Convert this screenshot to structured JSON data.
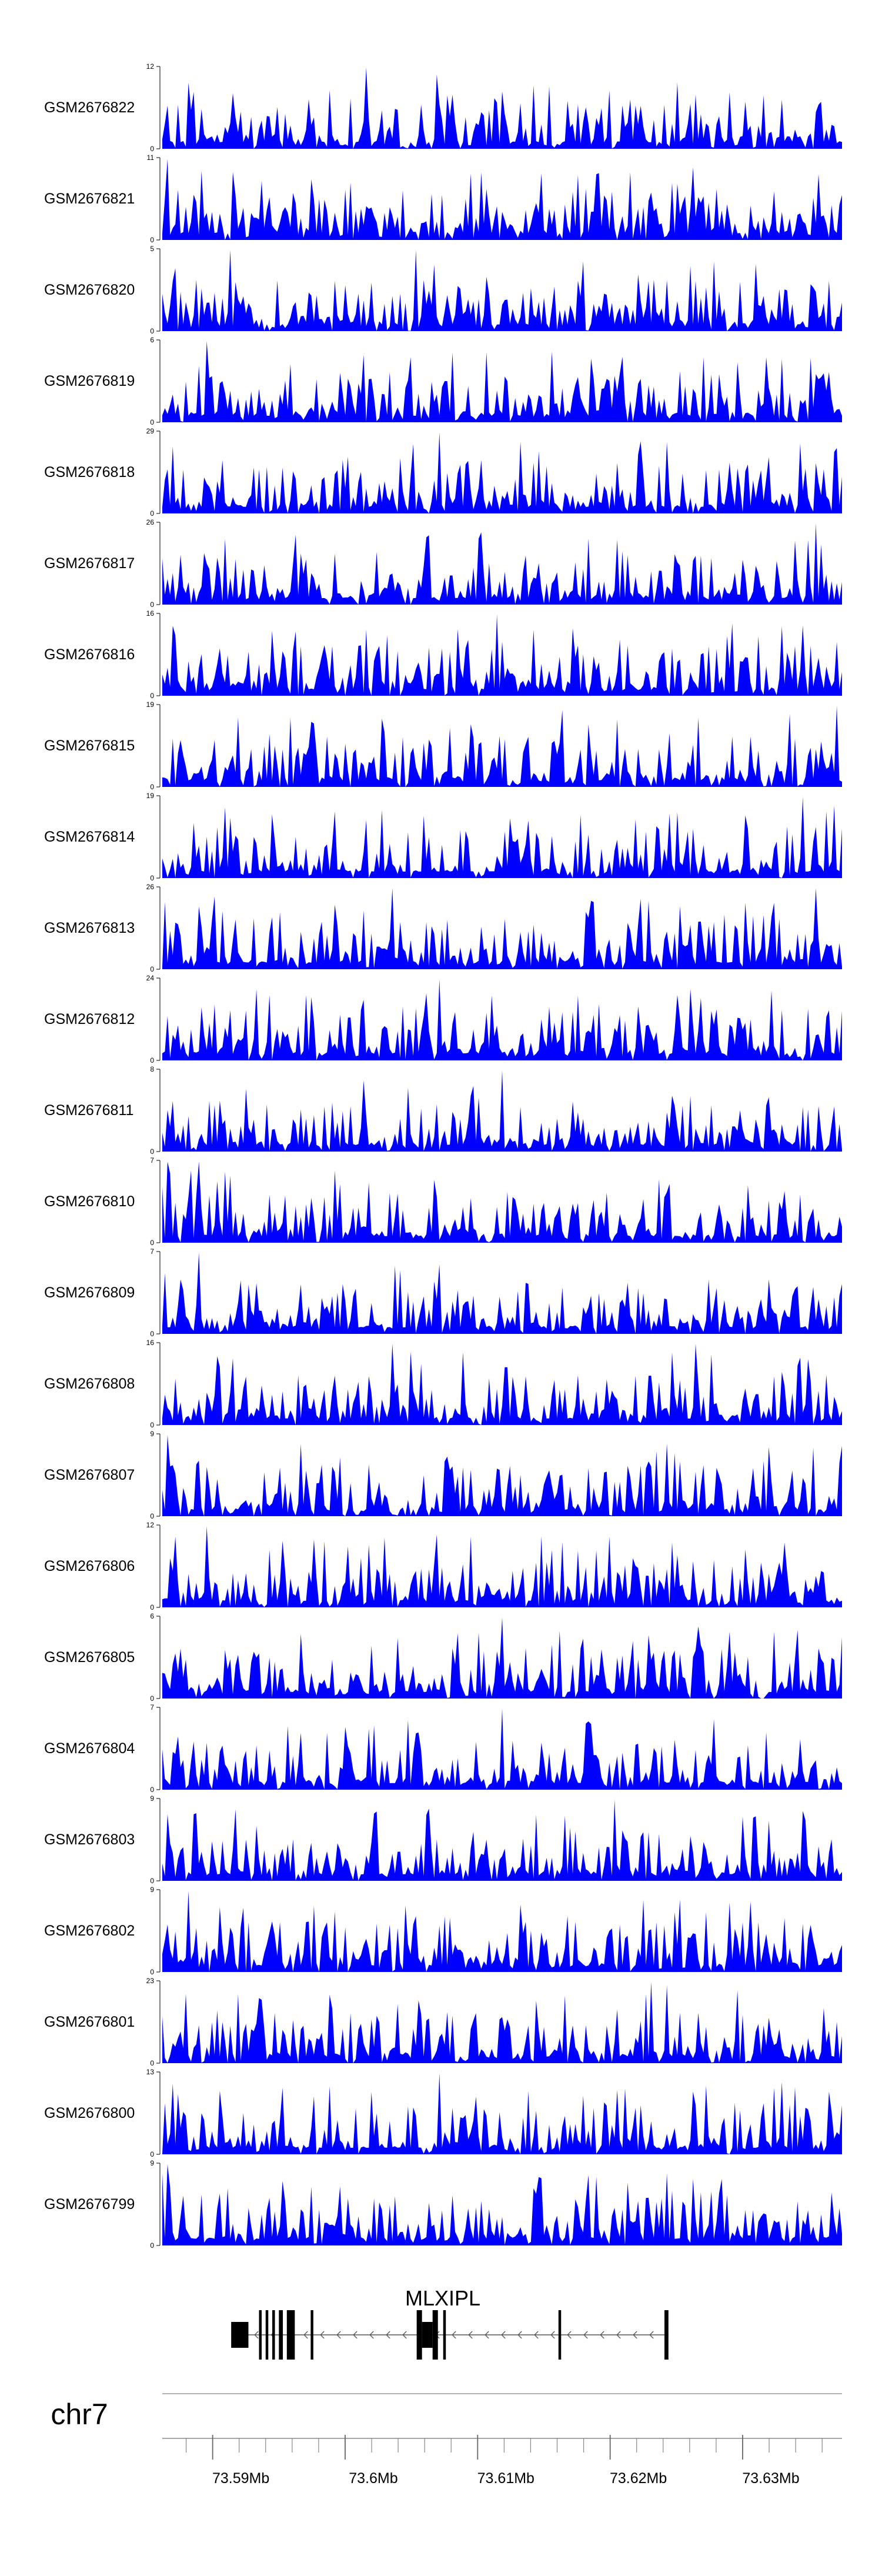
{
  "chart_data": {
    "type": "area",
    "title": "",
    "xlim": [
      73.5862,
      73.6375
    ],
    "x_unit": "Mb",
    "colors": {
      "signal": "#0000ff",
      "axis": "#000000",
      "gene": "#000000"
    },
    "tracks": [
      {
        "name": "GSM2676822",
        "ymax": "12",
        "peaks": [
          [
            73.6015,
            12
          ],
          [
            73.6069,
            11
          ]
        ]
      },
      {
        "name": "GSM2676821",
        "ymax": "11",
        "peaks": [
          [
            73.5865,
            11
          ],
          [
            73.6095,
            9
          ]
        ]
      },
      {
        "name": "GSM2676820",
        "ymax": "5",
        "peaks": [
          [
            73.5913,
            5
          ],
          [
            73.6053,
            5
          ]
        ]
      },
      {
        "name": "GSM2676819",
        "ymax": "6",
        "peaks": [
          [
            73.5895,
            6
          ],
          [
            73.6013,
            5
          ]
        ]
      },
      {
        "name": "GSM2676818",
        "ymax": "29",
        "peaks": [
          [
            73.6072,
            29
          ],
          [
            73.6222,
            21
          ]
        ]
      },
      {
        "name": "GSM2676817",
        "ymax": "26",
        "peaks": [
          [
            73.6355,
            26
          ],
          [
            73.6325,
            14
          ]
        ]
      },
      {
        "name": "GSM2676816",
        "ymax": "16",
        "peaks": [
          [
            73.6115,
            16
          ],
          [
            73.6142,
            13
          ]
        ]
      },
      {
        "name": "GSM2676815",
        "ymax": "19",
        "peaks": [
          [
            73.6371,
            19
          ],
          [
            73.6163,
            18
          ]
        ]
      },
      {
        "name": "GSM2676814",
        "ymax": "19",
        "peaks": [
          [
            73.6345,
            19
          ],
          [
            73.6125,
            14
          ]
        ]
      },
      {
        "name": "GSM2676813",
        "ymax": "26",
        "peaks": [
          [
            73.6355,
            26
          ],
          [
            73.6036,
            26
          ]
        ]
      },
      {
        "name": "GSM2676812",
        "ymax": "24",
        "peaks": [
          [
            73.6072,
            24
          ],
          [
            73.6222,
            16
          ]
        ]
      },
      {
        "name": "GSM2676811",
        "ymax": "8",
        "peaks": [
          [
            73.6118,
            8
          ],
          [
            73.6013,
            7
          ]
        ]
      },
      {
        "name": "GSM2676810",
        "ymax": "7",
        "peaks": [
          [
            73.5865,
            7
          ],
          [
            73.5889,
            7
          ]
        ]
      },
      {
        "name": "GSM2676809",
        "ymax": "7",
        "peaks": [
          [
            73.5889,
            7
          ],
          [
            73.6072,
            6
          ]
        ]
      },
      {
        "name": "GSM2676808",
        "ymax": "16",
        "peaks": [
          [
            73.6036,
            16
          ],
          [
            73.6265,
            16
          ]
        ]
      },
      {
        "name": "GSM2676807",
        "ymax": "9",
        "peaks": [
          [
            73.5865,
            9
          ],
          [
            73.5966,
            8
          ]
        ]
      },
      {
        "name": "GSM2676806",
        "ymax": "12",
        "peaks": [
          [
            73.5895,
            12
          ],
          [
            73.6003,
            9
          ]
        ]
      },
      {
        "name": "GSM2676805",
        "ymax": "6",
        "peaks": [
          [
            73.6118,
            6
          ],
          [
            73.6162,
            5
          ]
        ]
      },
      {
        "name": "GSM2676804",
        "ymax": "7",
        "peaks": [
          [
            73.6118,
            7
          ],
          [
            73.6048,
            6
          ]
        ]
      },
      {
        "name": "GSM2676803",
        "ymax": "9",
        "peaks": [
          [
            73.6203,
            9
          ],
          [
            73.6308,
            7
          ]
        ]
      },
      {
        "name": "GSM2676802",
        "ymax": "9",
        "peaks": [
          [
            73.5882,
            9
          ],
          [
            73.6225,
            8
          ]
        ]
      },
      {
        "name": "GSM2676801",
        "ymax": "23",
        "peaks": [
          [
            73.623,
            23
          ],
          [
            73.6242,
            22
          ]
        ]
      },
      {
        "name": "GSM2676800",
        "ymax": "13",
        "peaks": [
          [
            73.6072,
            13
          ],
          [
            73.6272,
            11
          ]
        ]
      },
      {
        "name": "GSM2676799",
        "ymax": "9",
        "peaks": [
          [
            73.5865,
            9
          ],
          [
            73.6242,
            8
          ]
        ]
      }
    ],
    "gene": {
      "name": "MLXIPL",
      "start": 73.5914,
      "end": 73.6244,
      "strand": "-"
    },
    "genome_axis": {
      "chromosome": "chr7",
      "ticks": [
        73.59,
        73.6,
        73.61,
        73.62,
        73.63
      ],
      "tick_labels": [
        "73.59Mb",
        "73.6Mb",
        "73.61Mb",
        "73.62Mb",
        "73.63Mb"
      ],
      "minor_step": 0.002
    }
  }
}
